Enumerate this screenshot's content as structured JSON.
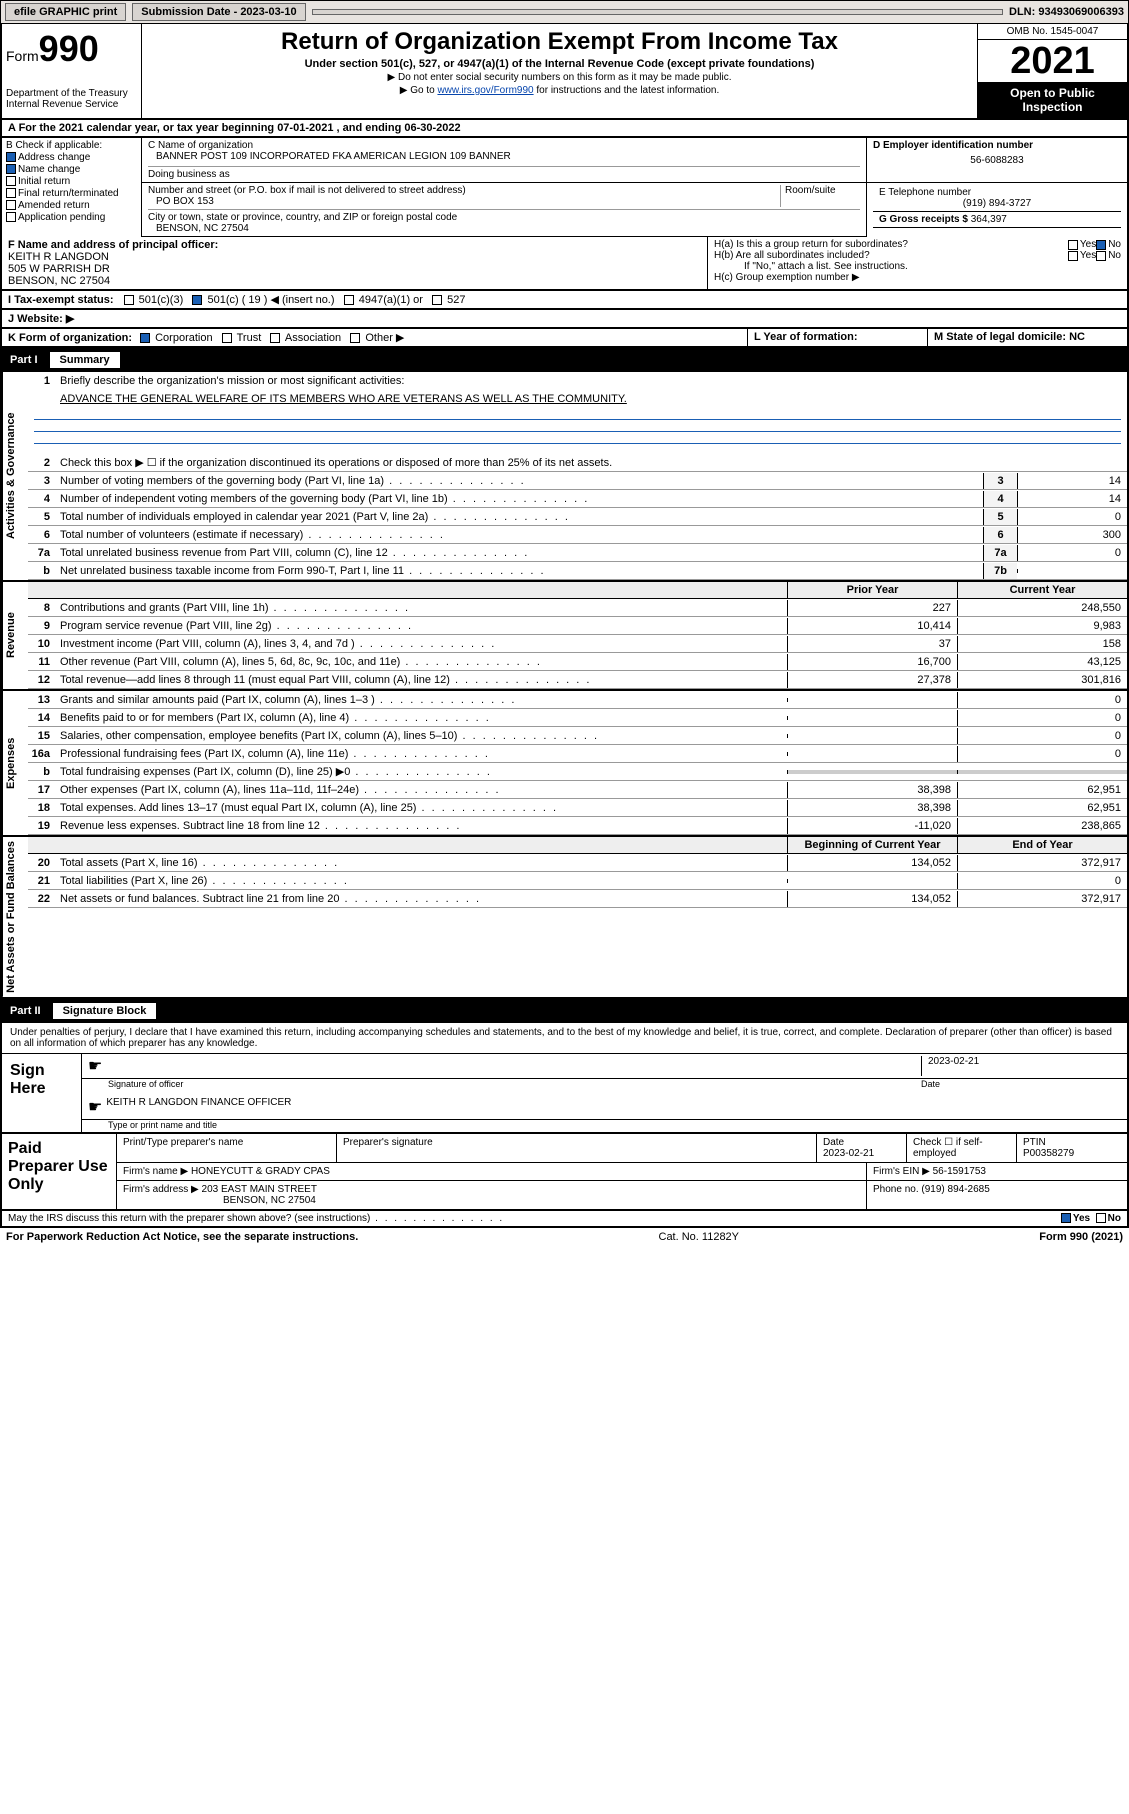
{
  "colors": {
    "link": "#0645ad",
    "black": "#000000",
    "white": "#ffffff",
    "check_blue": "#1a5fb4",
    "topbar_bg": "#e8e4e0",
    "shade": "#cccccc"
  },
  "topbar": {
    "efile": "efile GRAPHIC print",
    "sub_label": "Submission Date - 2023-03-10",
    "dln": "DLN: 93493069006393"
  },
  "header": {
    "form_word": "Form",
    "form_num": "990",
    "dept": "Department of the Treasury Internal Revenue Service",
    "title": "Return of Organization Exempt From Income Tax",
    "subtitle": "Under section 501(c), 527, or 4947(a)(1) of the Internal Revenue Code (except private foundations)",
    "note1": "▶ Do not enter social security numbers on this form as it may be made public.",
    "note2_pre": "▶ Go to ",
    "note2_link": "www.irs.gov/Form990",
    "note2_post": " for instructions and the latest information.",
    "omb": "OMB No. 1545-0047",
    "year": "2021",
    "open": "Open to Public Inspection"
  },
  "row_a": "A For the 2021 calendar year, or tax year beginning 07-01-2021   , and ending 06-30-2022",
  "section_b": {
    "label": "B Check if applicable:",
    "items": [
      {
        "txt": "Address change",
        "checked": true
      },
      {
        "txt": "Name change",
        "checked": true
      },
      {
        "txt": "Initial return",
        "checked": false
      },
      {
        "txt": "Final return/terminated",
        "checked": false
      },
      {
        "txt": "Amended return",
        "checked": false
      },
      {
        "txt": "Application pending",
        "checked": false
      }
    ]
  },
  "section_c": {
    "name_label": "C Name of organization",
    "name": "BANNER POST 109 INCORPORATED FKA AMERICAN LEGION 109 BANNER",
    "dba_label": "Doing business as",
    "dba": "",
    "addr_label": "Number and street (or P.O. box if mail is not delivered to street address)",
    "room_label": "Room/suite",
    "addr": "PO BOX 153",
    "city_label": "City or town, state or province, country, and ZIP or foreign postal code",
    "city": "BENSON, NC  27504"
  },
  "section_d": {
    "label": "D Employer identification number",
    "value": "56-6088283"
  },
  "section_e": {
    "label": "E Telephone number",
    "value": "(919) 894-3727"
  },
  "section_g": {
    "label": "G Gross receipts $",
    "value": "364,397"
  },
  "section_f": {
    "label": "F Name and address of principal officer:",
    "line1": "KEITH R LANGDON",
    "line2": "505 W PARRISH DR",
    "line3": "BENSON, NC  27504"
  },
  "section_h": {
    "ha": "H(a)  Is this a group return for subordinates?",
    "ha_yes": "Yes",
    "ha_no": "No",
    "ha_checked": "No",
    "hb": "H(b)  Are all subordinates included?",
    "hb_yes": "Yes",
    "hb_no": "No",
    "hb_note": "If \"No,\" attach a list. See instructions.",
    "hc": "H(c)  Group exemption number ▶"
  },
  "row_i": {
    "label": "I    Tax-exempt status:",
    "opts": [
      "501(c)(3)",
      "501(c) ( 19 ) ◀ (insert no.)",
      "4947(a)(1) or",
      "527"
    ],
    "checked_index": 1
  },
  "row_j": "J    Website: ▶",
  "row_k": {
    "label": "K Form of organization:",
    "opts": [
      "Corporation",
      "Trust",
      "Association",
      "Other ▶"
    ],
    "checked_index": 0
  },
  "row_l": "L Year of formation:",
  "row_m": "M State of legal domicile: NC",
  "part1": {
    "header_part": "Part I",
    "header_title": "Summary",
    "sections": [
      {
        "side": "Activities & Governance",
        "lines_text": [
          {
            "n": "1",
            "d": "Briefly describe the organization's mission or most significant activities:"
          },
          {
            "n": "",
            "d_bold": "ADVANCE THE GENERAL WELFARE OF ITS MEMBERS WHO ARE VETERANS AS WELL AS THE COMMUNITY."
          }
        ],
        "lines_nv": [
          {
            "n": "2",
            "d": "Check this box ▶ ☐  if the organization discontinued its operations or disposed of more than 25% of its net assets.",
            "box": "",
            "val": ""
          },
          {
            "n": "3",
            "d": "Number of voting members of the governing body (Part VI, line 1a)",
            "box": "3",
            "val": "14"
          },
          {
            "n": "4",
            "d": "Number of independent voting members of the governing body (Part VI, line 1b)",
            "box": "4",
            "val": "14"
          },
          {
            "n": "5",
            "d": "Total number of individuals employed in calendar year 2021 (Part V, line 2a)",
            "box": "5",
            "val": "0"
          },
          {
            "n": "6",
            "d": "Total number of volunteers (estimate if necessary)",
            "box": "6",
            "val": "300"
          },
          {
            "n": "7a",
            "d": "Total unrelated business revenue from Part VIII, column (C), line 12",
            "box": "7a",
            "val": "0"
          },
          {
            "n": "b",
            "d": "Net unrelated business taxable income from Form 990-T, Part I, line 11",
            "box": "7b",
            "val": ""
          }
        ]
      }
    ],
    "two_col_header": {
      "prior": "Prior Year",
      "current": "Current Year"
    },
    "two_col_sections": [
      {
        "side": "Revenue",
        "lines": [
          {
            "n": "8",
            "d": "Contributions and grants (Part VIII, line 1h)",
            "p": "227",
            "c": "248,550"
          },
          {
            "n": "9",
            "d": "Program service revenue (Part VIII, line 2g)",
            "p": "10,414",
            "c": "9,983"
          },
          {
            "n": "10",
            "d": "Investment income (Part VIII, column (A), lines 3, 4, and 7d )",
            "p": "37",
            "c": "158"
          },
          {
            "n": "11",
            "d": "Other revenue (Part VIII, column (A), lines 5, 6d, 8c, 9c, 10c, and 11e)",
            "p": "16,700",
            "c": "43,125"
          },
          {
            "n": "12",
            "d": "Total revenue—add lines 8 through 11 (must equal Part VIII, column (A), line 12)",
            "p": "27,378",
            "c": "301,816"
          }
        ]
      },
      {
        "side": "Expenses",
        "lines": [
          {
            "n": "13",
            "d": "Grants and similar amounts paid (Part IX, column (A), lines 1–3 )",
            "p": "",
            "c": "0"
          },
          {
            "n": "14",
            "d": "Benefits paid to or for members (Part IX, column (A), line 4)",
            "p": "",
            "c": "0"
          },
          {
            "n": "15",
            "d": "Salaries, other compensation, employee benefits (Part IX, column (A), lines 5–10)",
            "p": "",
            "c": "0"
          },
          {
            "n": "16a",
            "d": "Professional fundraising fees (Part IX, column (A), line 11e)",
            "p": "",
            "c": "0"
          },
          {
            "n": "b",
            "d": "Total fundraising expenses (Part IX, column (D), line 25) ▶0",
            "p": "shade",
            "c": "shade"
          },
          {
            "n": "17",
            "d": "Other expenses (Part IX, column (A), lines 11a–11d, 11f–24e)",
            "p": "38,398",
            "c": "62,951"
          },
          {
            "n": "18",
            "d": "Total expenses. Add lines 13–17 (must equal Part IX, column (A), line 25)",
            "p": "38,398",
            "c": "62,951"
          },
          {
            "n": "19",
            "d": "Revenue less expenses. Subtract line 18 from line 12",
            "p": "-11,020",
            "c": "238,865"
          }
        ]
      }
    ],
    "net_header": {
      "begin": "Beginning of Current Year",
      "end": "End of Year"
    },
    "net_section": {
      "side": "Net Assets or Fund Balances",
      "lines": [
        {
          "n": "20",
          "d": "Total assets (Part X, line 16)",
          "p": "134,052",
          "c": "372,917"
        },
        {
          "n": "21",
          "d": "Total liabilities (Part X, line 26)",
          "p": "",
          "c": "0"
        },
        {
          "n": "22",
          "d": "Net assets or fund balances. Subtract line 21 from line 20",
          "p": "134,052",
          "c": "372,917"
        }
      ]
    }
  },
  "part2": {
    "header_part": "Part II",
    "header_title": "Signature Block",
    "decl": "Under penalties of perjury, I declare that I have examined this return, including accompanying schedules and statements, and to the best of my knowledge and belief, it is true, correct, and complete. Declaration of preparer (other than officer) is based on all information of which preparer has any knowledge.",
    "sign_here": "Sign Here",
    "sig_officer": "Signature of officer",
    "sig_date_label": "Date",
    "sig_date": "2023-02-21",
    "officer_name": "KEITH R LANGDON  FINANCE OFFICER",
    "officer_sub": "Type or print name and title",
    "paid": "Paid Preparer Use Only",
    "prep_cols": [
      "Print/Type preparer's name",
      "Preparer's signature",
      "Date",
      "",
      "PTIN"
    ],
    "prep_date": "2023-02-21",
    "prep_check": "Check ☐ if self-employed",
    "ptin": "P00358279",
    "firm_name_label": "Firm's name    ▶",
    "firm_name": "HONEYCUTT & GRADY CPAS",
    "firm_ein_label": "Firm's EIN ▶",
    "firm_ein": "56-1591753",
    "firm_addr_label": "Firm's address ▶",
    "firm_addr1": "203 EAST MAIN STREET",
    "firm_addr2": "BENSON, NC  27504",
    "phone_label": "Phone no.",
    "phone": "(919) 894-2685",
    "discuss": "May the IRS discuss this return with the preparer shown above? (see instructions)",
    "discuss_yes": "Yes",
    "discuss_no": "No"
  },
  "footer": {
    "left": "For Paperwork Reduction Act Notice, see the separate instructions.",
    "mid": "Cat. No. 11282Y",
    "right": "Form 990 (2021)"
  }
}
